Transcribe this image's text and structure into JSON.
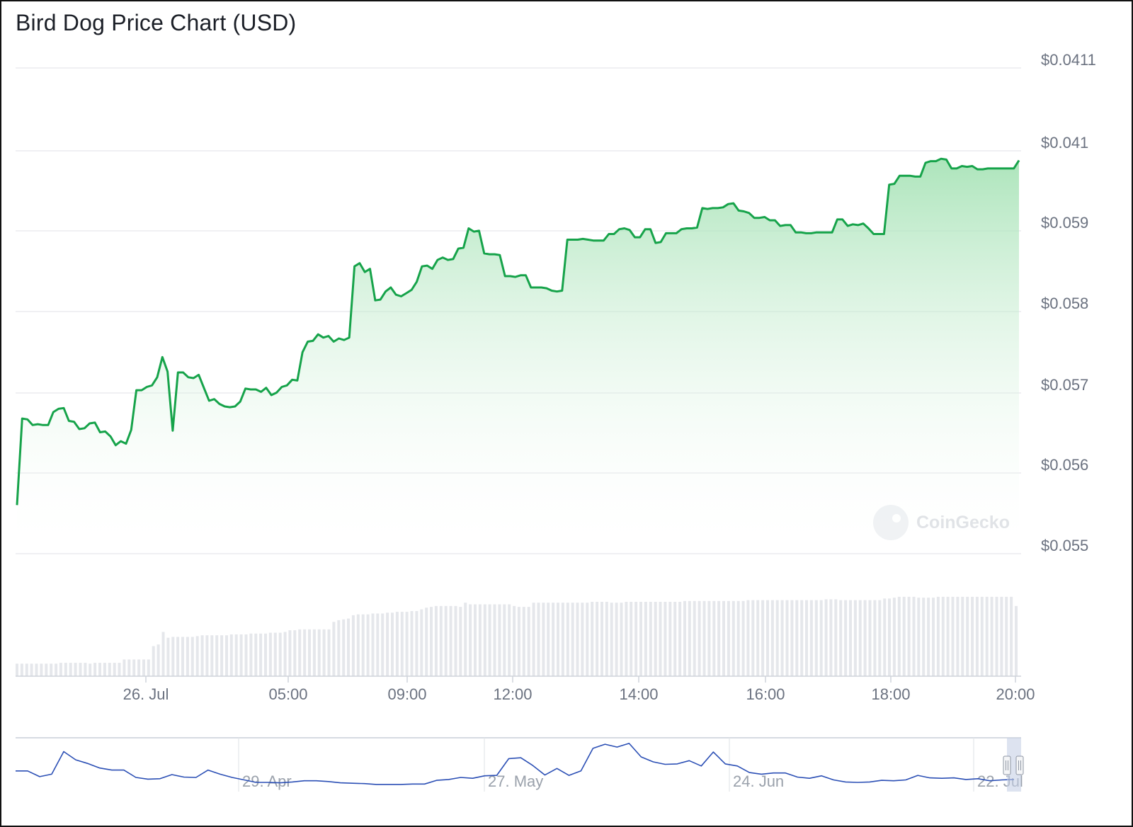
{
  "colors": {
    "line": "#16a34a",
    "area_top": "#9ee0af",
    "grid": "#e6e8ec",
    "axis_text": "#6b7280",
    "volume_bar": "#e5e7eb",
    "navigator_line": "#2b4fb5",
    "navigator_handle": "#c7d0e6"
  },
  "chart_data": {
    "type": "line",
    "title": "Bird Dog Price Chart (USD)",
    "grid": true,
    "y_tick_labels": [
      "$0.0411",
      "$0.041",
      "$0.059",
      "$0.058",
      "$0.057",
      "$0.056",
      "$0.055"
    ],
    "x_tick_labels": [
      "26. Jul",
      "05:00",
      "09:00",
      "12:00",
      "14:00",
      "16:00",
      "18:00",
      "20:00"
    ],
    "navigator_labels": [
      "29. Apr",
      "27. May",
      "24. Jun",
      "22. Jul"
    ],
    "watermark": "CoinGecko",
    "series": [
      {
        "values": [
          0.0556,
          0.05667,
          0.05666,
          0.05659,
          0.0566,
          0.05659,
          0.05659,
          0.05675,
          0.05679,
          0.0568,
          0.05664,
          0.05663,
          0.05654,
          0.05655,
          0.05661,
          0.05662,
          0.0565,
          0.05651,
          0.05645,
          0.05634,
          0.05639,
          0.05636,
          0.05653,
          0.05702,
          0.05702,
          0.05706,
          0.05708,
          0.05718,
          0.05743,
          0.05725,
          0.05652,
          0.05724,
          0.05724,
          0.05718,
          0.05717,
          0.05721,
          0.05705,
          0.05689,
          0.05691,
          0.05685,
          0.05682,
          0.05681,
          0.05682,
          0.05688,
          0.05704,
          0.05703,
          0.05703,
          0.057,
          0.05705,
          0.05696,
          0.05699,
          0.05706,
          0.05708,
          0.05715,
          0.05714,
          0.05749,
          0.05762,
          0.05763,
          0.05771,
          0.05767,
          0.05769,
          0.05762,
          0.05766,
          0.05764,
          0.05767,
          0.05855,
          0.05859,
          0.05848,
          0.05852,
          0.05813,
          0.05814,
          0.05824,
          0.05829,
          0.0582,
          0.05818,
          0.05822,
          0.05826,
          0.05836,
          0.05855,
          0.05856,
          0.05852,
          0.05863,
          0.05866,
          0.05863,
          0.05864,
          0.05877,
          0.05878,
          0.05902,
          0.05898,
          0.05899,
          0.05871,
          0.0587,
          0.0587,
          0.05869,
          0.05843,
          0.05843,
          0.05842,
          0.05844,
          0.05844,
          0.05829,
          0.05829,
          0.05829,
          0.05828,
          0.05825,
          0.05824,
          0.05825,
          0.05888,
          0.05888,
          0.05888,
          0.05889,
          0.05888,
          0.05887,
          0.05887,
          0.05887,
          0.05895,
          0.05895,
          0.05901,
          0.05902,
          0.059,
          0.05891,
          0.05891,
          0.05901,
          0.05901,
          0.05884,
          0.05885,
          0.05896,
          0.05896,
          0.05896,
          0.05901,
          0.05902,
          0.05902,
          0.05903,
          0.05927,
          0.05926,
          0.05927,
          0.05927,
          0.05928,
          0.05932,
          0.05933,
          0.05924,
          0.05923,
          0.05921,
          0.05915,
          0.05915,
          0.05916,
          0.05912,
          0.05912,
          0.05905,
          0.05906,
          0.05906,
          0.05897,
          0.05897,
          0.05896,
          0.05896,
          0.05897,
          0.05897,
          0.05897,
          0.05897,
          0.05913,
          0.05913,
          0.05905,
          0.05907,
          0.05906,
          0.05908,
          0.05902,
          0.05895,
          0.05895,
          0.05895,
          0.05956,
          0.05957,
          0.05967,
          0.05967,
          0.05967,
          0.05966,
          0.05966,
          0.05983,
          0.05985,
          0.05985,
          0.05988,
          0.05987,
          0.05976,
          0.05976,
          0.05979,
          0.05978,
          0.05979,
          0.05975,
          0.05975,
          0.05976,
          0.05976,
          0.05976,
          0.05976,
          0.05976,
          0.05976,
          0.05986
        ]
      }
    ],
    "volume": [
      0.15,
      0.15,
      0.15,
      0.15,
      0.15,
      0.15,
      0.15,
      0.15,
      0.15,
      0.16,
      0.16,
      0.16,
      0.16,
      0.16,
      0.16,
      0.15,
      0.16,
      0.16,
      0.16,
      0.16,
      0.16,
      0.16,
      0.2,
      0.2,
      0.2,
      0.2,
      0.2,
      0.2,
      0.36,
      0.38,
      0.53,
      0.46,
      0.47,
      0.47,
      0.47,
      0.47,
      0.47,
      0.48,
      0.49,
      0.49,
      0.49,
      0.49,
      0.49,
      0.49,
      0.5,
      0.5,
      0.5,
      0.5,
      0.51,
      0.51,
      0.51,
      0.51,
      0.52,
      0.52,
      0.52,
      0.53,
      0.55,
      0.55,
      0.56,
      0.56,
      0.56,
      0.56,
      0.56,
      0.56,
      0.56,
      0.65,
      0.67,
      0.68,
      0.69,
      0.73,
      0.74,
      0.74,
      0.74,
      0.75,
      0.75,
      0.75,
      0.76,
      0.76,
      0.77,
      0.77,
      0.77,
      0.78,
      0.78,
      0.8,
      0.82,
      0.83,
      0.84,
      0.84,
      0.84,
      0.84,
      0.84,
      0.83,
      0.88,
      0.86,
      0.86,
      0.86,
      0.86,
      0.86,
      0.86,
      0.86,
      0.86,
      0.86,
      0.84,
      0.83,
      0.83,
      0.83,
      0.88,
      0.88,
      0.88,
      0.88,
      0.88,
      0.88,
      0.88,
      0.88,
      0.88,
      0.88,
      0.88,
      0.88,
      0.89,
      0.89,
      0.89,
      0.89,
      0.88,
      0.88,
      0.88,
      0.89,
      0.89,
      0.89,
      0.89,
      0.89,
      0.89,
      0.89,
      0.89,
      0.89,
      0.89,
      0.89,
      0.89,
      0.9,
      0.9,
      0.9,
      0.9,
      0.9,
      0.9,
      0.9,
      0.9,
      0.9,
      0.9,
      0.9,
      0.9,
      0.9,
      0.91,
      0.91,
      0.91,
      0.91,
      0.91,
      0.91,
      0.91,
      0.91,
      0.91,
      0.91,
      0.91,
      0.91,
      0.91,
      0.91,
      0.91,
      0.91,
      0.92,
      0.92,
      0.92,
      0.91,
      0.91,
      0.91,
      0.91,
      0.91,
      0.91,
      0.91,
      0.91,
      0.91,
      0.93,
      0.93,
      0.94,
      0.95,
      0.95,
      0.95,
      0.95,
      0.94,
      0.94,
      0.94,
      0.94,
      0.95,
      0.95,
      0.95,
      0.95,
      0.95,
      0.95,
      0.95,
      0.95,
      0.95,
      0.95,
      0.95,
      0.95,
      0.95,
      0.95,
      0.95,
      0.95,
      0.84
    ],
    "navigator_series": [
      0.28,
      0.28,
      0.14,
      0.2,
      0.75,
      0.55,
      0.46,
      0.35,
      0.3,
      0.3,
      0.12,
      0.08,
      0.09,
      0.19,
      0.13,
      0.12,
      0.3,
      0.2,
      0.12,
      0.06,
      0.0,
      0.0,
      -0.01,
      0.01,
      0.04,
      0.04,
      0.02,
      -0.01,
      -0.02,
      -0.03,
      -0.05,
      -0.05,
      -0.05,
      -0.04,
      -0.04,
      0.05,
      0.07,
      0.12,
      0.1,
      0.16,
      0.17,
      0.58,
      0.6,
      0.41,
      0.18,
      0.34,
      0.17,
      0.28,
      0.83,
      0.93,
      0.86,
      0.95,
      0.62,
      0.5,
      0.44,
      0.45,
      0.53,
      0.4,
      0.74,
      0.45,
      0.4,
      0.24,
      0.2,
      0.23,
      0.23,
      0.13,
      0.1,
      0.16,
      0.06,
      0.01,
      0.0,
      0.01,
      0.05,
      0.04,
      0.06,
      0.17,
      0.11,
      0.1,
      0.11,
      0.07,
      0.09,
      0.04,
      0.06,
      0.07
    ]
  }
}
